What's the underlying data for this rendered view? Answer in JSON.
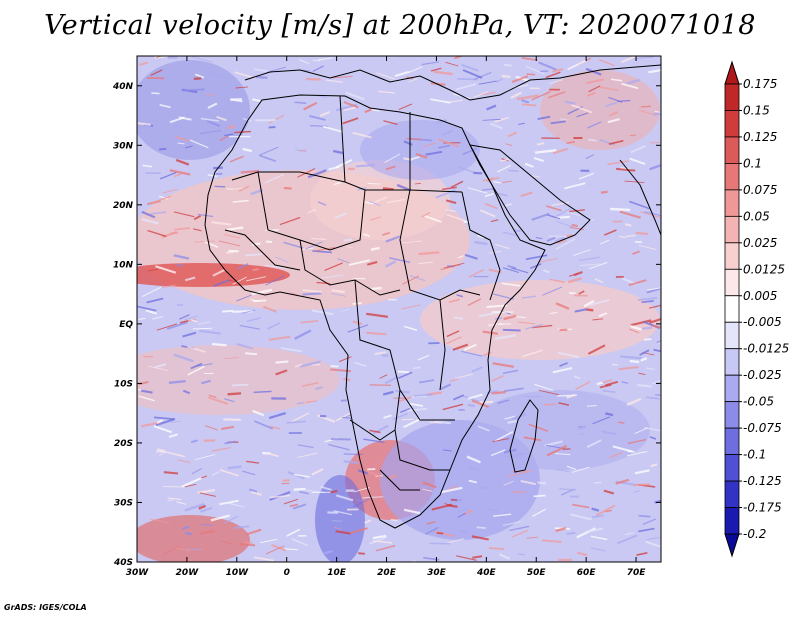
{
  "title": "Vertical velocity [m/s] at 200hPa, VT: 2020071018",
  "credit": "GrADS: IGES/COLA",
  "map": {
    "lon_range": [
      -30,
      75
    ],
    "lat_range": [
      -40,
      45
    ],
    "lat_labels": [
      "40N",
      "30N",
      "20N",
      "10N",
      "EQ",
      "10S",
      "20S",
      "30S",
      "40S"
    ],
    "lat_values": [
      40,
      30,
      20,
      10,
      0,
      -10,
      -20,
      -30,
      -40
    ],
    "lon_labels": [
      "30W",
      "20W",
      "10W",
      "0",
      "10E",
      "20E",
      "30E",
      "40E",
      "50E",
      "60E",
      "70E"
    ],
    "lon_values": [
      -30,
      -20,
      -10,
      0,
      10,
      20,
      30,
      40,
      50,
      60,
      70
    ]
  },
  "colorbar": {
    "labels": [
      "0.175",
      "0.15",
      "0.125",
      "0.1",
      "0.075",
      "0.05",
      "0.025",
      "0.0125",
      "0.005",
      "-0.005",
      "-0.0125",
      "-0.025",
      "-0.05",
      "-0.075",
      "-0.1",
      "-0.125",
      "-0.175",
      "-0.2"
    ],
    "colors": [
      "#b01919",
      "#c02828",
      "#d03c3c",
      "#dc5a5a",
      "#e87878",
      "#f09898",
      "#f5b4b4",
      "#f9d0d0",
      "#fce8e8",
      "#ffffff",
      "#e4e4fb",
      "#c8c8f6",
      "#aaaaf0",
      "#8c8ce8",
      "#6e6ee0",
      "#5050d4",
      "#3232c4",
      "#1a1ab0",
      "#0a0a98"
    ]
  }
}
